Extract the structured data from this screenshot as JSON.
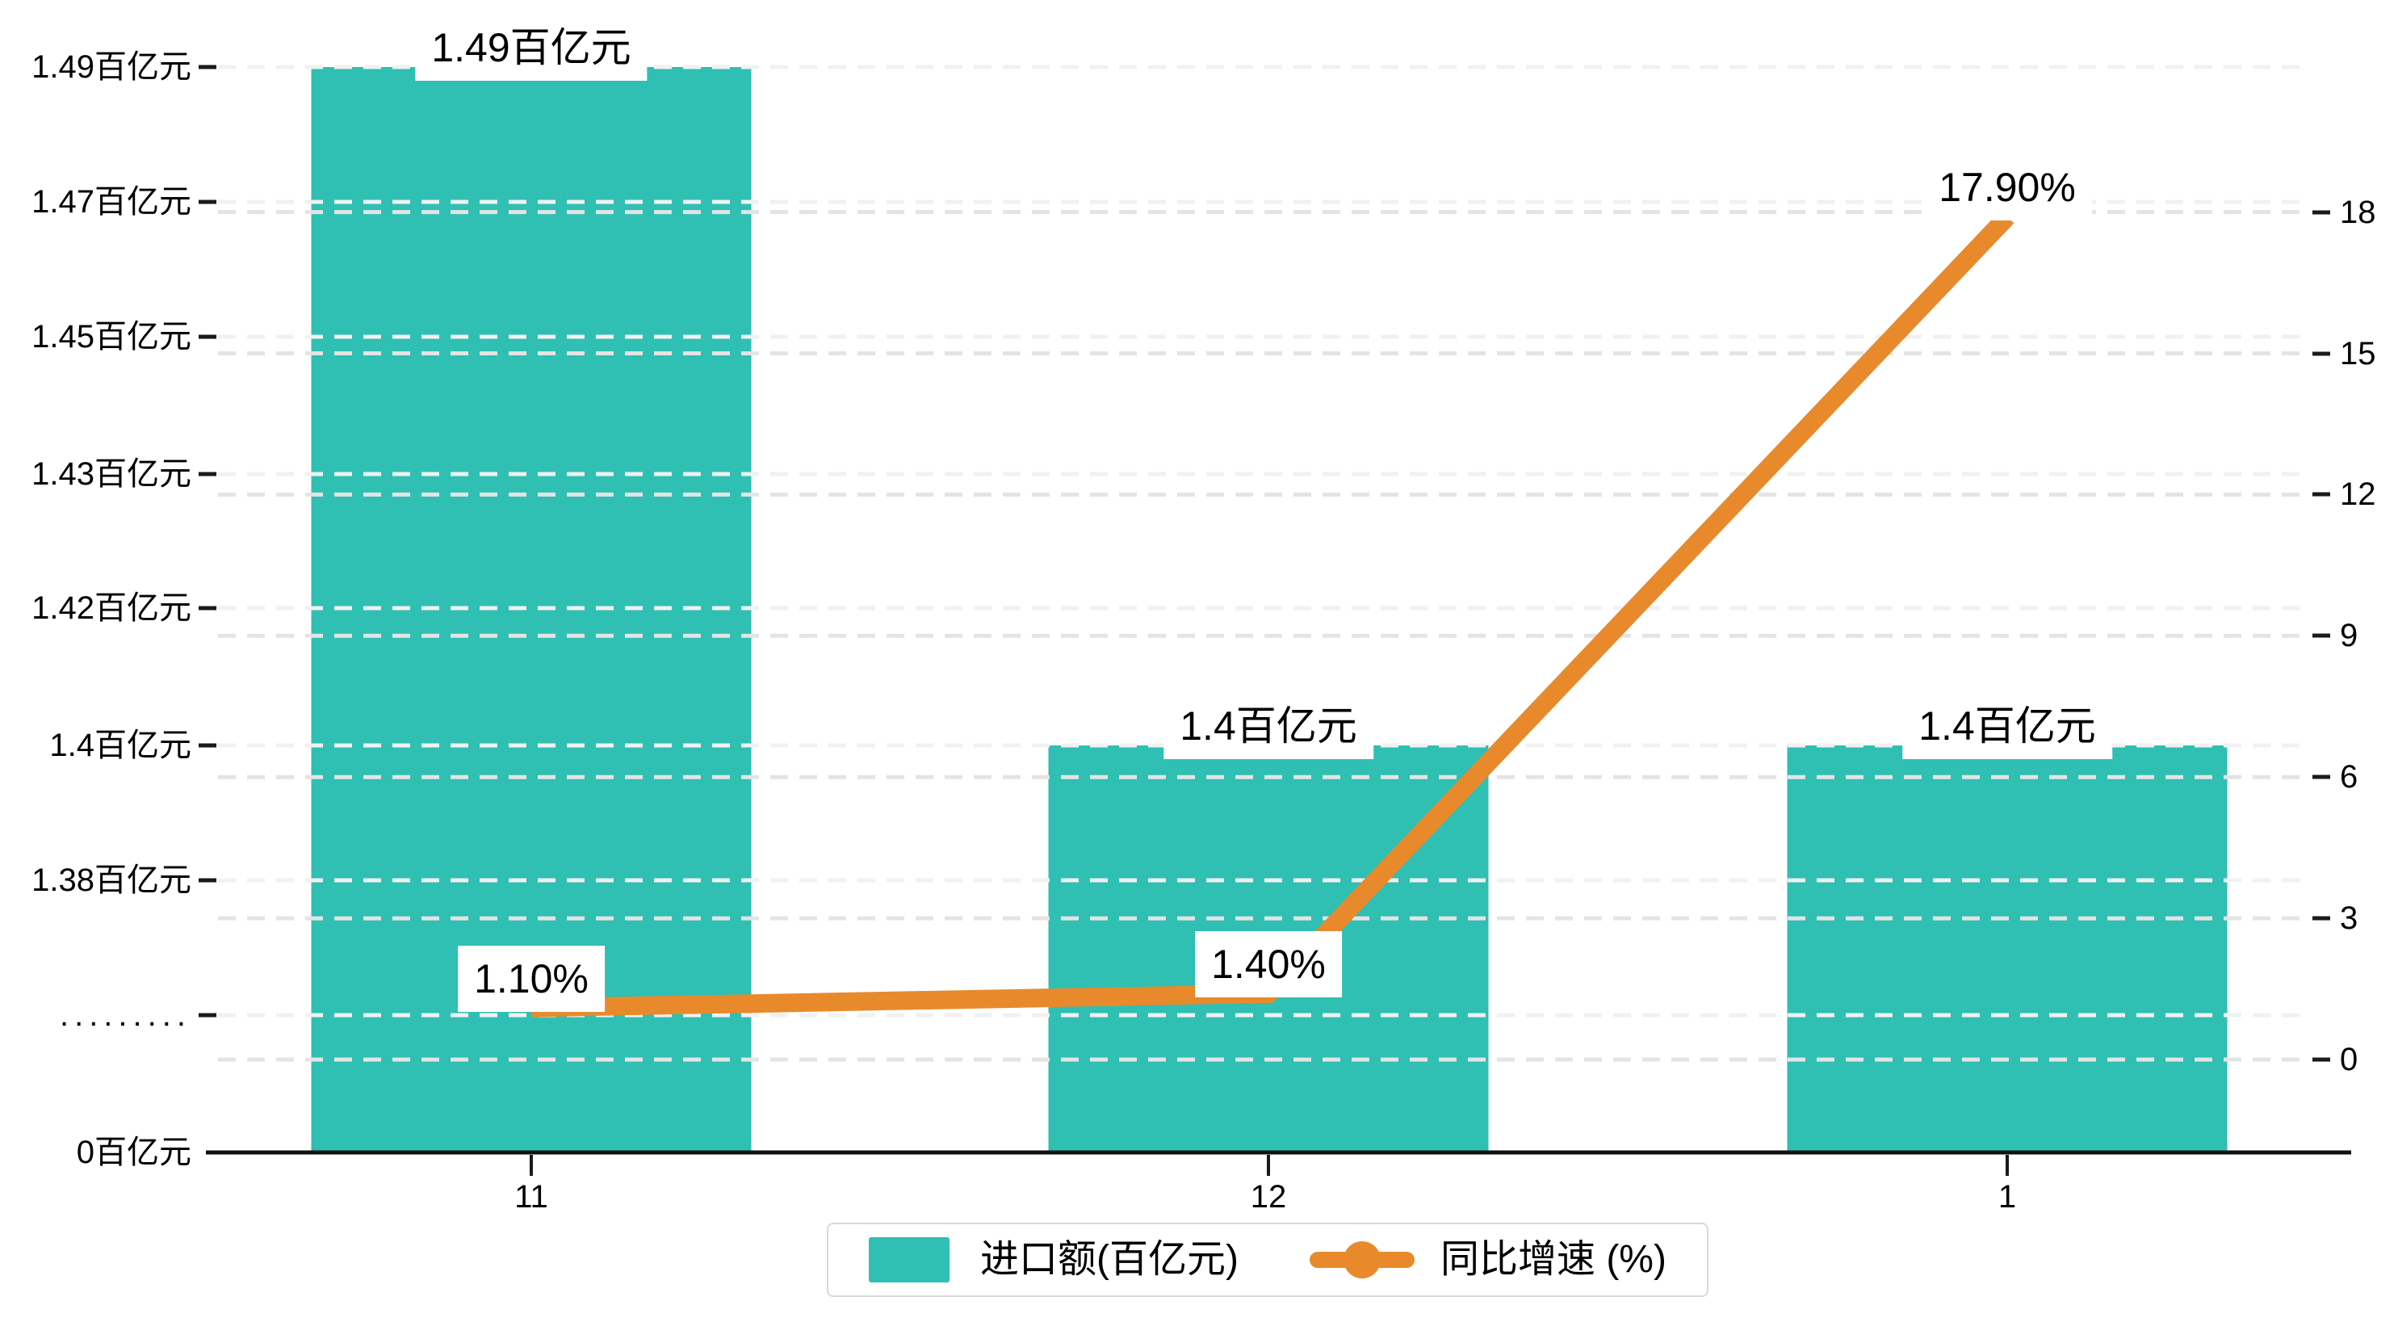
{
  "chart_data": {
    "type": "bar-line-combo",
    "categories": [
      "11",
      "12",
      "1"
    ],
    "series": [
      {
        "name": "进口额(百亿元)",
        "type": "bar",
        "axis": "left",
        "color": "#2FBFB3",
        "values": [
          1.49,
          1.4,
          1.4
        ],
        "data_labels": [
          "1.49百亿元",
          "1.4百亿元",
          "1.4百亿元"
        ]
      },
      {
        "name": "同比增速 (%)",
        "type": "line",
        "axis": "right",
        "color": "#E88A2C",
        "values": [
          1.1,
          1.4,
          17.9
        ],
        "data_labels": [
          "1.10%",
          "1.40%",
          "17.90%"
        ]
      }
    ],
    "left_axis": {
      "unit": "百亿元",
      "broken_axis": true,
      "tick_labels": [
        "0百亿元",
        ".........",
        "1.38百亿元",
        "1.4百亿元",
        "1.42百亿元",
        "1.43百亿元",
        "1.45百亿元",
        "1.47百亿元",
        "1.49百亿元"
      ]
    },
    "right_axis": {
      "min": 0,
      "max": 18,
      "step": 3,
      "tick_labels": [
        "0",
        "3",
        "6",
        "9",
        "12",
        "15",
        "18"
      ]
    },
    "x_axis": {
      "tick_labels": [
        "11",
        "12",
        "1"
      ]
    },
    "legend": {
      "position": "bottom-center",
      "items": [
        {
          "label": "进口额(百亿元)",
          "marker": "rect",
          "color": "#2FBFB3"
        },
        {
          "label": "同比增速 (%)",
          "marker": "line-dot",
          "color": "#E88A2C"
        }
      ]
    },
    "grid": "dashed-horizontal",
    "background": "#FFFFFF"
  }
}
